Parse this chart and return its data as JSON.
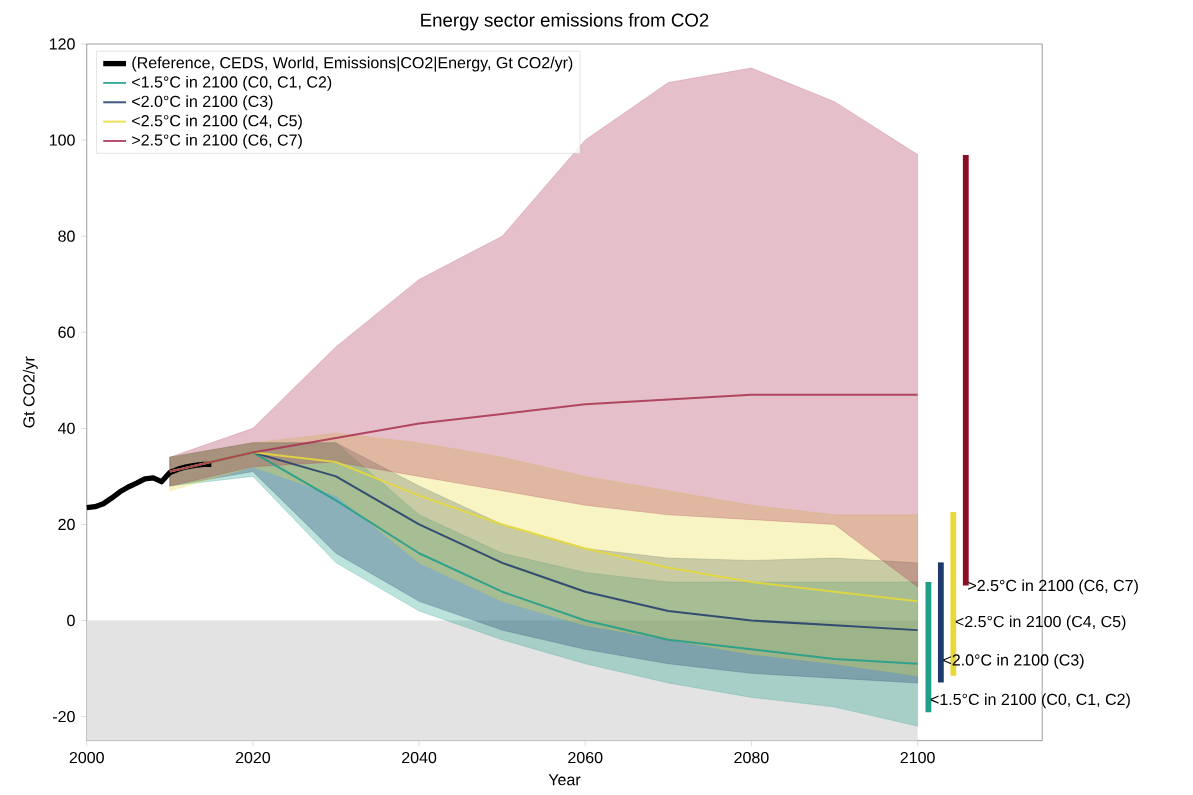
{
  "chart_data": {
    "type": "line",
    "title": "Energy sector emissions from CO2",
    "xlabel": "Year",
    "ylabel": "Gt CO2/yr",
    "x": [
      2010,
      2020,
      2030,
      2040,
      2050,
      2060,
      2070,
      2080,
      2090,
      2100
    ],
    "series": [
      {
        "name": "(Reference, CEDS, World, Emissions|CO2|Energy, Gt CO2/yr)",
        "color": "#000000",
        "x": [
          2000,
          2001,
          2002,
          2003,
          2004,
          2005,
          2006,
          2007,
          2008,
          2009,
          2010,
          2011,
          2012,
          2013,
          2014,
          2015
        ],
        "values": [
          23.5,
          23.7,
          24.3,
          25.5,
          26.8,
          27.8,
          28.6,
          29.5,
          29.7,
          28.9,
          30.8,
          31.5,
          32,
          32.3,
          32.5,
          32.5
        ]
      },
      {
        "name": "<1.5°C in 2100 (C0, C1, C2)",
        "color": "#1f9e89",
        "values": [
          31,
          35,
          25,
          14,
          6,
          0,
          -4,
          -6,
          -8,
          -9
        ],
        "lower": [
          28,
          30,
          12,
          2,
          -4,
          -9,
          -13,
          -16,
          -18,
          -22
        ],
        "upper": [
          34,
          37,
          37,
          22,
          14,
          10,
          8,
          8,
          8,
          8
        ]
      },
      {
        "name": "<2.0°C in 2100 (C3)",
        "color": "#1f3a6a",
        "values": [
          31,
          35,
          30,
          20,
          12,
          6,
          2,
          0,
          -1,
          -2
        ],
        "lower": [
          28,
          31,
          14,
          4,
          -2,
          -6,
          -9,
          -11,
          -12,
          -13
        ],
        "upper": [
          34,
          37,
          37,
          28,
          20,
          15,
          13,
          12.5,
          13,
          12
        ]
      },
      {
        "name": "<2.5°C in 2100 (C4, C5)",
        "color": "#e8d93a",
        "values": [
          31,
          35,
          33,
          26,
          20,
          15,
          11,
          8,
          6,
          4
        ],
        "lower": [
          27,
          32,
          26,
          12,
          4,
          -1,
          -4,
          -7,
          -9,
          -11.5
        ],
        "upper": [
          34,
          37,
          39,
          37,
          34,
          30,
          27,
          24,
          22,
          22
        ]
      },
      {
        "name": ">2.5°C in 2100 (C6, C7)",
        "color": "#a8304f",
        "values": [
          31,
          35,
          38,
          41,
          43,
          45,
          46,
          47,
          47,
          47
        ],
        "lower": [
          28,
          32,
          33,
          30,
          27,
          24,
          22,
          21,
          20,
          7
        ],
        "upper": [
          34,
          40,
          57,
          71,
          80,
          100,
          112,
          115,
          108,
          97
        ]
      },
      {
        "type": "bar",
        "color": "#1f9e89",
        "x": [
          2101.3
        ],
        "base": [
          -19.1
        ],
        "values": [
          27.1
        ]
      },
      {
        "type": "bar",
        "color": "#1f3a6a",
        "x": [
          2102.8
        ],
        "base": [
          -12.9
        ],
        "values": [
          25
        ]
      },
      {
        "type": "bar",
        "color": "#e8d93a",
        "x": [
          2104.3
        ],
        "base": [
          -11.5
        ],
        "values": [
          34.1
        ]
      },
      {
        "type": "bar",
        "color": "#8b0e24",
        "x": [
          2105.8
        ],
        "base": [
          7.3
        ],
        "values": [
          89.6
        ]
      }
    ],
    "annotations": [
      {
        "text": ">2.5°C in 2100 (C6, C7)",
        "x": 2105.8,
        "y": 7
      },
      {
        "text": "<2.5°C in 2100 (C4, C5)",
        "x": 2104.3,
        "y": -0.5
      },
      {
        "text": "<2.0°C in 2100 (C3)",
        "x": 2102.8,
        "y": -8.5
      },
      {
        "text": "<1.5°C in 2100 (C0, C1, C2)",
        "x": 2101.3,
        "y": -16.7
      }
    ],
    "bands": [
      {
        "axis": "y",
        "from": -25,
        "to": 0,
        "color": "#e3e3e3"
      }
    ],
    "xlim": [
      2000,
      2115
    ],
    "ylim": [
      -25,
      120
    ],
    "xticks": [
      2000,
      2020,
      2040,
      2060,
      2080,
      2100
    ],
    "yticks": [
      -20,
      0,
      20,
      40,
      60,
      80,
      100,
      120
    ],
    "legend": "top left",
    "marker": "none",
    "line_style": "solid"
  }
}
